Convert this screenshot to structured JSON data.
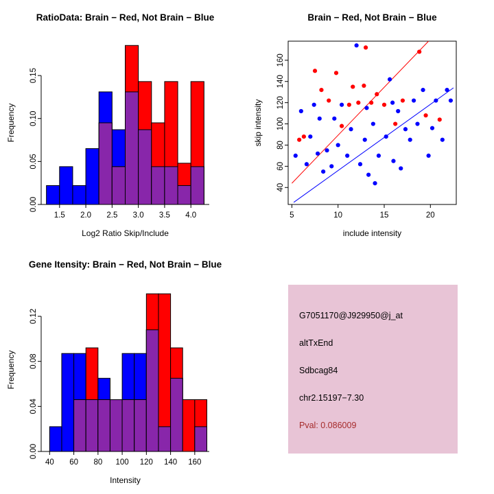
{
  "colors": {
    "red": "#FF0000",
    "blue": "#0000FF",
    "overlap": "#8826AA",
    "info_bg": "#E8C4D6",
    "pval_text": "#A52A2A"
  },
  "chart_data": [
    {
      "id": "ratio-histogram",
      "type": "bar",
      "title": "RatioData: Brain − Red, Not Brain − Blue",
      "xlabel": "Log2 Ratio Skip/Include",
      "ylabel": "Frequency",
      "xlim": [
        1.15,
        4.35
      ],
      "ylim": [
        0,
        0.19
      ],
      "grid": false,
      "legend": "none",
      "xticks": [
        {
          "v": 1.5,
          "l": "1.5"
        },
        {
          "v": 2.0,
          "l": "2.0"
        },
        {
          "v": 2.5,
          "l": "2.5"
        },
        {
          "v": 3.0,
          "l": "3.0"
        },
        {
          "v": 3.5,
          "l": "3.5"
        },
        {
          "v": 4.0,
          "l": "4.0"
        }
      ],
      "yticks": [
        {
          "v": 0,
          "l": "0.00"
        },
        {
          "v": 0.05,
          "l": "0.05"
        },
        {
          "v": 0.1,
          "l": "0.10"
        },
        {
          "v": 0.15,
          "l": "0.15"
        }
      ],
      "bin_start": 1.25,
      "bin_width": 0.25,
      "series": [
        {
          "name": "Not Brain",
          "color": "blue",
          "values": [
            0.022,
            0.044,
            0.022,
            0.065,
            0.131,
            0.087,
            0.131,
            0.087,
            0.044,
            0.044,
            0.022,
            0.044
          ]
        },
        {
          "name": "Brain",
          "color": "red",
          "values": [
            0,
            0,
            0,
            0,
            0.095,
            0.044,
            0.185,
            0.143,
            0.095,
            0.143,
            0.048,
            0.143
          ]
        }
      ]
    },
    {
      "id": "intensity-scatter",
      "type": "scatter",
      "title": "Brain − Red, Not Brain − Blue",
      "xlabel": "include intensity",
      "ylabel": "skip intensity",
      "xlim": [
        4.6,
        22.8
      ],
      "ylim": [
        24,
        178
      ],
      "box": true,
      "grid": false,
      "legend": "none",
      "xticks": [
        {
          "v": 5,
          "l": "5"
        },
        {
          "v": 10,
          "l": "10"
        },
        {
          "v": 15,
          "l": "15"
        },
        {
          "v": 20,
          "l": "20"
        }
      ],
      "yticks": [
        {
          "v": 40,
          "l": "40"
        },
        {
          "v": 60,
          "l": "60"
        },
        {
          "v": 80,
          "l": "80"
        },
        {
          "v": 100,
          "l": "100"
        },
        {
          "v": 120,
          "l": "120"
        },
        {
          "v": 140,
          "l": "140"
        },
        {
          "v": 160,
          "l": "160"
        }
      ],
      "series": [
        {
          "name": "Brain",
          "color": "red",
          "points": [
            [
              5.8,
              85
            ],
            [
              6.3,
              88
            ],
            [
              7.5,
              150
            ],
            [
              8.2,
              132
            ],
            [
              9.0,
              122
            ],
            [
              9.8,
              148
            ],
            [
              10.4,
              98
            ],
            [
              11.2,
              118
            ],
            [
              11.6,
              135
            ],
            [
              12.2,
              120
            ],
            [
              12.8,
              136
            ],
            [
              13.0,
              172
            ],
            [
              13.6,
              120
            ],
            [
              14.2,
              128
            ],
            [
              15.0,
              118
            ],
            [
              16.2,
              100
            ],
            [
              17.0,
              122
            ],
            [
              18.8,
              168
            ],
            [
              19.5,
              108
            ],
            [
              21.0,
              104
            ]
          ]
        },
        {
          "name": "Not Brain",
          "color": "blue",
          "points": [
            [
              5.4,
              70
            ],
            [
              6.0,
              112
            ],
            [
              6.6,
              62
            ],
            [
              7.0,
              88
            ],
            [
              7.4,
              118
            ],
            [
              7.8,
              72
            ],
            [
              8.0,
              105
            ],
            [
              8.4,
              55
            ],
            [
              8.8,
              75
            ],
            [
              9.3,
              60
            ],
            [
              9.6,
              105
            ],
            [
              10.0,
              80
            ],
            [
              10.4,
              118
            ],
            [
              11.0,
              70
            ],
            [
              11.4,
              95
            ],
            [
              12.0,
              174
            ],
            [
              12.4,
              62
            ],
            [
              12.9,
              85
            ],
            [
              13.1,
              115
            ],
            [
              13.3,
              52
            ],
            [
              13.8,
              100
            ],
            [
              14.0,
              44
            ],
            [
              14.4,
              70
            ],
            [
              15.2,
              88
            ],
            [
              15.6,
              142
            ],
            [
              15.9,
              120
            ],
            [
              16.0,
              65
            ],
            [
              16.5,
              112
            ],
            [
              16.8,
              58
            ],
            [
              17.3,
              95
            ],
            [
              17.8,
              85
            ],
            [
              18.2,
              122
            ],
            [
              18.6,
              100
            ],
            [
              19.2,
              132
            ],
            [
              19.8,
              70
            ],
            [
              20.2,
              96
            ],
            [
              20.6,
              122
            ],
            [
              21.3,
              85
            ],
            [
              21.8,
              132
            ],
            [
              22.2,
              122
            ]
          ]
        }
      ],
      "lines": [
        {
          "color": "red",
          "from": [
            5.0,
            44
          ],
          "to": [
            19.8,
            178
          ]
        },
        {
          "color": "blue",
          "from": [
            5.2,
            26
          ],
          "to": [
            22.5,
            134
          ]
        }
      ]
    },
    {
      "id": "gene-intensity-histogram",
      "type": "bar",
      "title": "Gene Itensity: Brain − Red, Not Brain − Blue",
      "xlabel": "Intensity",
      "ylabel": "Frequency",
      "xlim": [
        33,
        172
      ],
      "ylim": [
        0,
        0.145
      ],
      "grid": false,
      "legend": "none",
      "xticks": [
        {
          "v": 40,
          "l": "40"
        },
        {
          "v": 60,
          "l": "60"
        },
        {
          "v": 80,
          "l": "80"
        },
        {
          "v": 100,
          "l": "100"
        },
        {
          "v": 120,
          "l": "120"
        },
        {
          "v": 140,
          "l": "140"
        },
        {
          "v": 160,
          "l": "160"
        }
      ],
      "yticks": [
        {
          "v": 0,
          "l": "0.00"
        },
        {
          "v": 0.04,
          "l": "0.04"
        },
        {
          "v": 0.08,
          "l": "0.08"
        },
        {
          "v": 0.12,
          "l": "0.12"
        }
      ],
      "bin_start": 40,
      "bin_width": 10,
      "series": [
        {
          "name": "Not Brain",
          "color": "blue",
          "values": [
            0.022,
            0.087,
            0.087,
            0.046,
            0.065,
            0.046,
            0.087,
            0.087,
            0.108,
            0.022,
            0.065,
            0,
            0.022
          ]
        },
        {
          "name": "Brain",
          "color": "red",
          "values": [
            0,
            0,
            0.046,
            0.092,
            0.046,
            0.046,
            0.046,
            0.046,
            0.14,
            0.14,
            0.092,
            0.046,
            0.046
          ]
        }
      ]
    },
    {
      "id": "gene-info",
      "type": "table",
      "lines": [
        "G7051170@J929950@j_at",
        "altTxEnd",
        "Sdbcag84",
        "chr2.15197−7.30",
        "Pval: 0.086009"
      ]
    }
  ]
}
